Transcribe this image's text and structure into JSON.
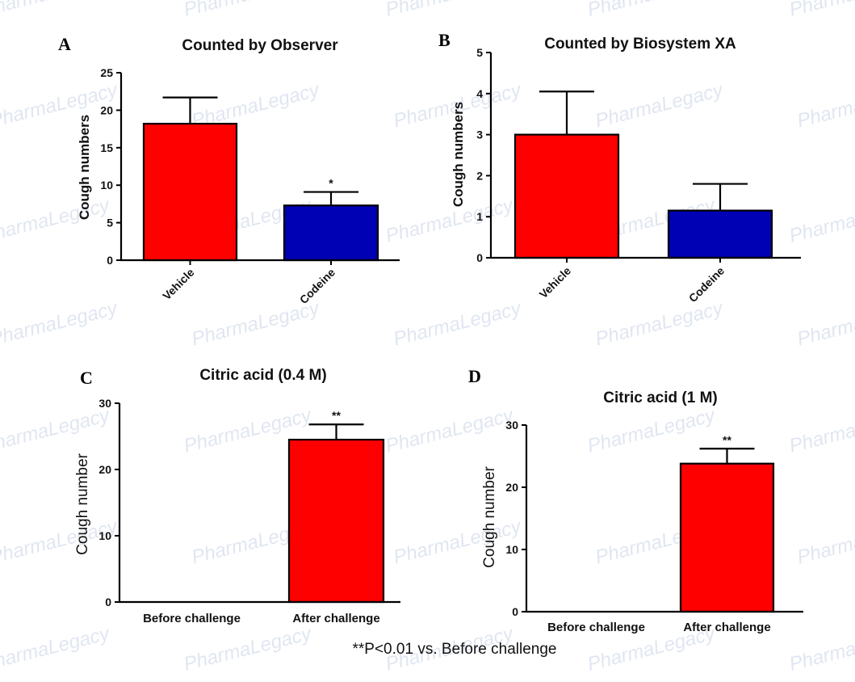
{
  "watermark": "PharmaLegacy",
  "footnote": "**P<0.01 vs. Before challenge",
  "colors": {
    "red": "#ff0000",
    "blue": "#0000b4",
    "axis": "#000000"
  },
  "chart_data": [
    {
      "panel": "A",
      "type": "bar",
      "title": "Counted by Observer",
      "ylabel": "Cough numbers",
      "xlabel": "",
      "categories": [
        "Vehicle",
        "Codeine"
      ],
      "values": [
        18.2,
        7.3
      ],
      "errors": [
        3.5,
        1.8
      ],
      "colors": [
        "#ff0000",
        "#0000b4"
      ],
      "significance": [
        "",
        "*"
      ],
      "ylim": [
        0,
        25
      ],
      "yticks": [
        0,
        5,
        10,
        15,
        20,
        25
      ],
      "rotated_labels": true
    },
    {
      "panel": "B",
      "type": "bar",
      "title": "Counted by Biosystem XA",
      "ylabel": "Cough numbers",
      "xlabel": "",
      "categories": [
        "Vehicle",
        "Codeine"
      ],
      "values": [
        3.0,
        1.15
      ],
      "errors": [
        1.05,
        0.65
      ],
      "colors": [
        "#ff0000",
        "#0000b4"
      ],
      "significance": [
        "",
        ""
      ],
      "ylim": [
        0,
        5
      ],
      "yticks": [
        0,
        1,
        2,
        3,
        4,
        5
      ],
      "rotated_labels": true
    },
    {
      "panel": "C",
      "type": "bar",
      "title": "Citric acid (0.4 M)",
      "ylabel": "Cough number",
      "xlabel": "",
      "categories": [
        "Before challenge",
        "After challenge"
      ],
      "values": [
        0,
        24.5
      ],
      "errors": [
        0,
        2.3
      ],
      "colors": [
        "#ff0000",
        "#ff0000"
      ],
      "significance": [
        "",
        "**"
      ],
      "ylim": [
        0,
        30
      ],
      "yticks": [
        0,
        10,
        20,
        30
      ],
      "rotated_labels": false
    },
    {
      "panel": "D",
      "type": "bar",
      "title": "Citric acid (1 M)",
      "ylabel": "Cough number",
      "xlabel": "",
      "categories": [
        "Before challenge",
        "After challenge"
      ],
      "values": [
        0,
        23.8
      ],
      "errors": [
        0,
        2.4
      ],
      "colors": [
        "#ff0000",
        "#ff0000"
      ],
      "significance": [
        "",
        "**"
      ],
      "ylim": [
        0,
        30
      ],
      "yticks": [
        0,
        10,
        20,
        30
      ],
      "rotated_labels": false
    }
  ]
}
